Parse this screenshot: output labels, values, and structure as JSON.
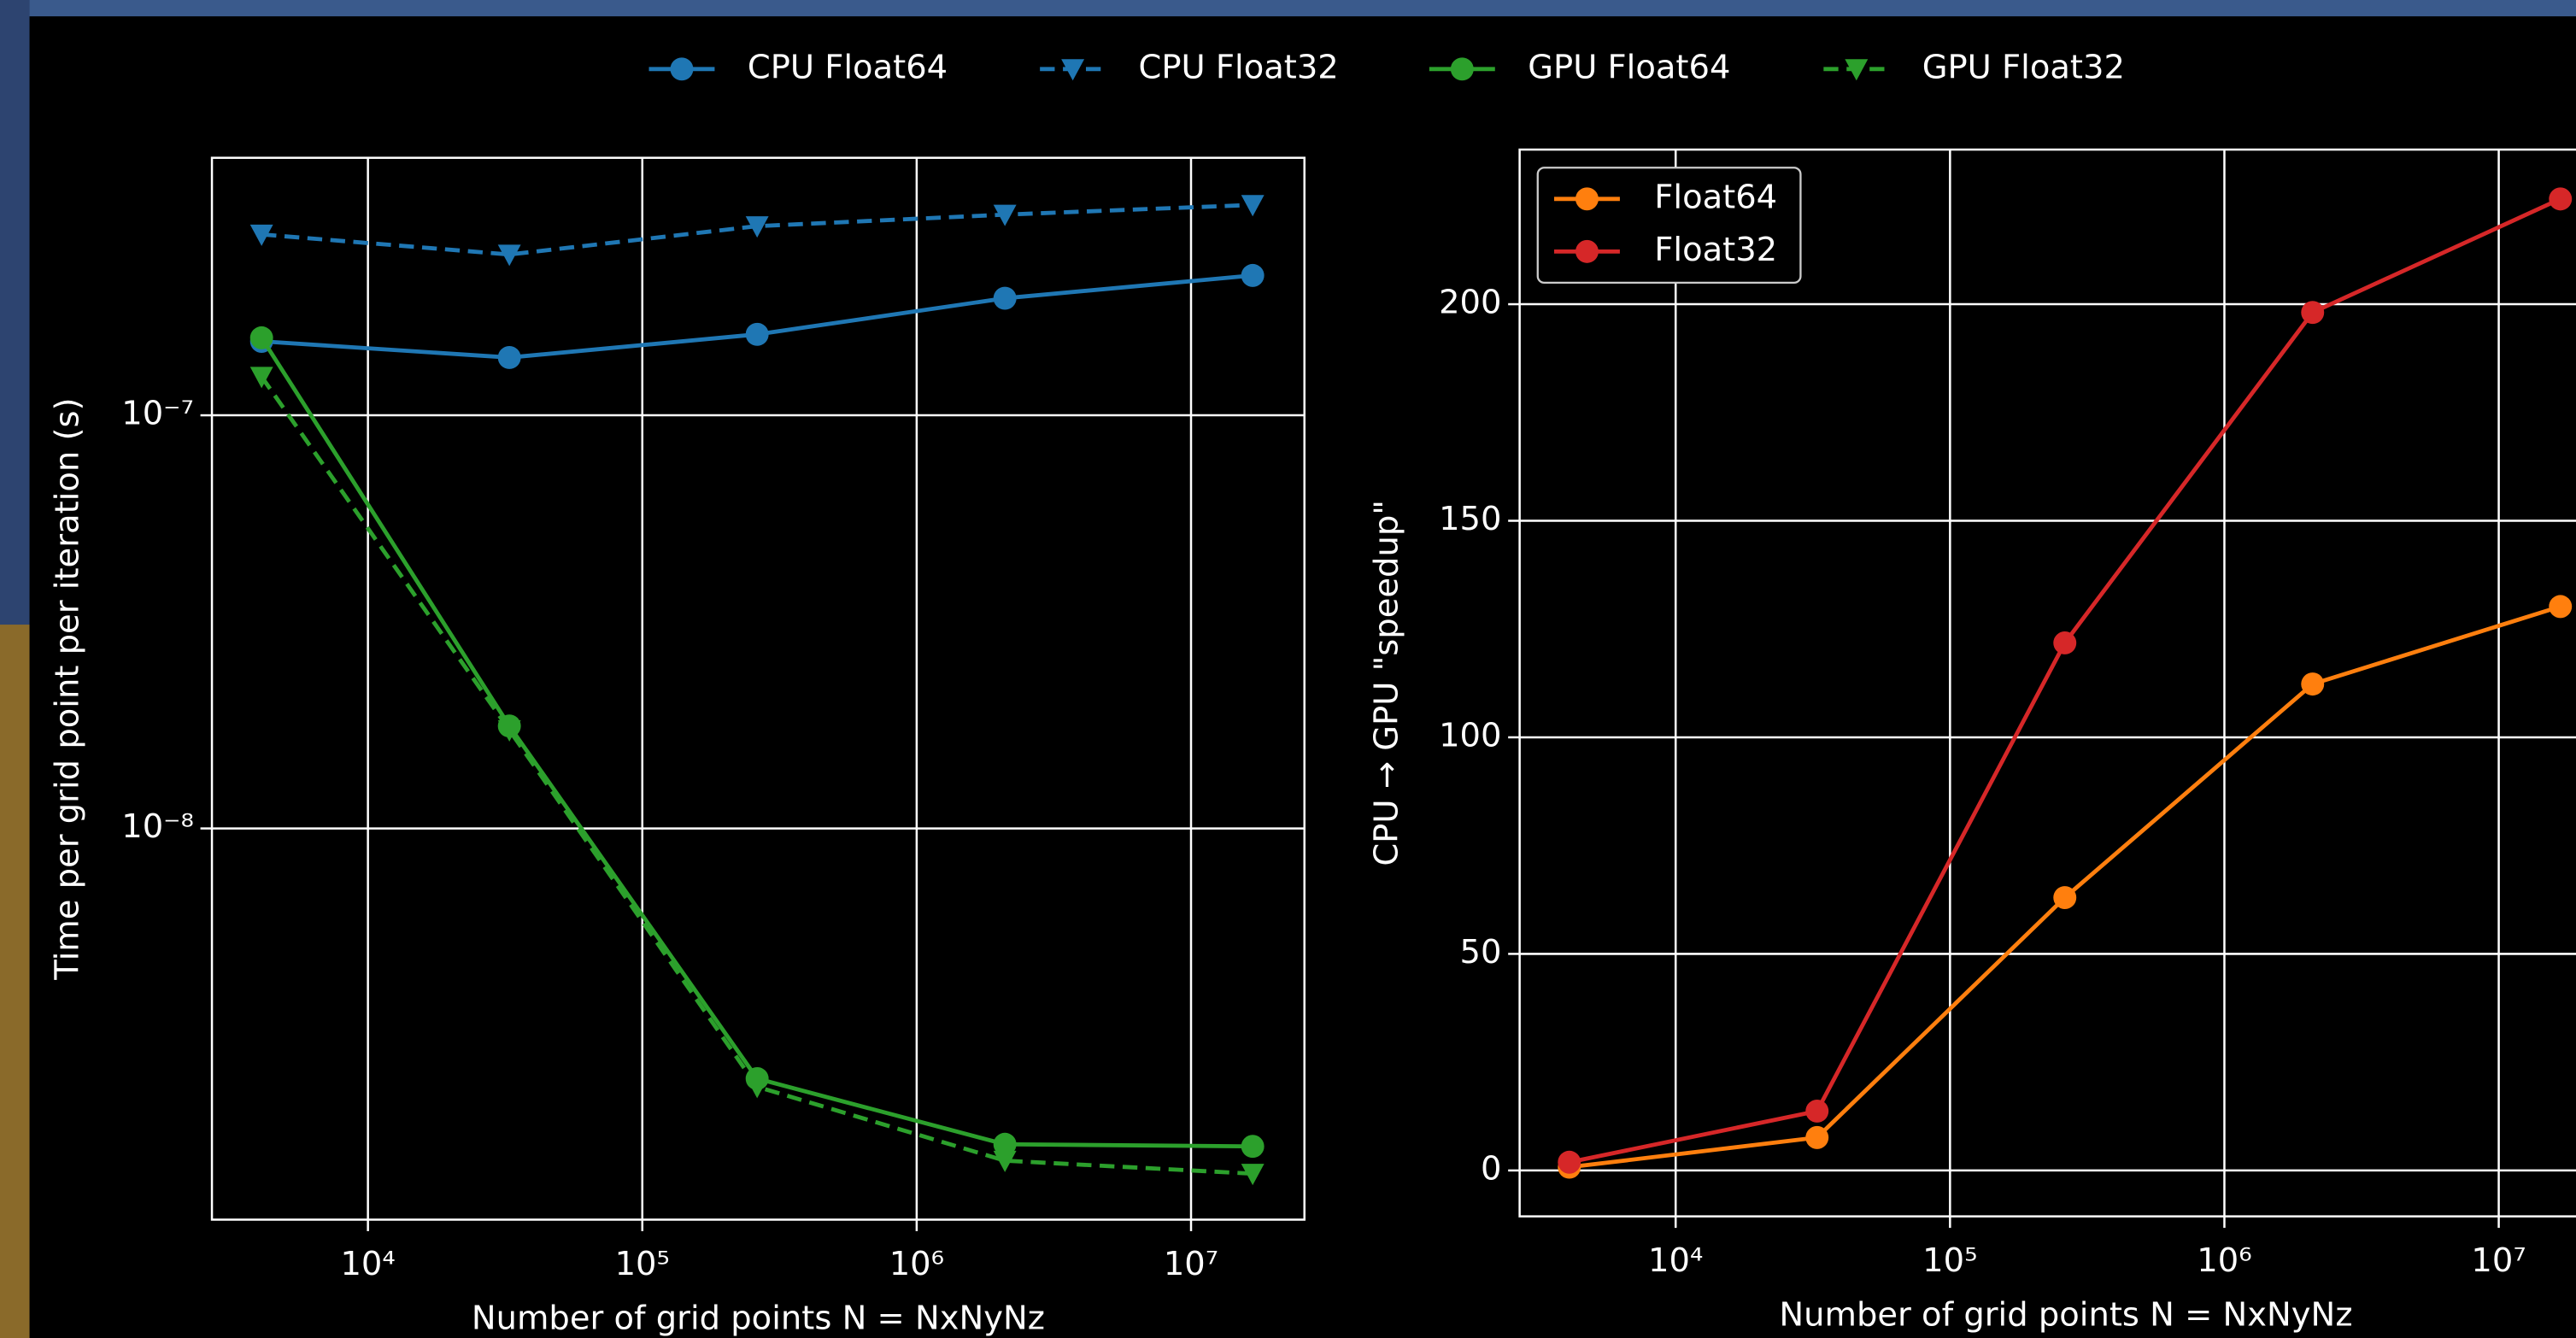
{
  "chart_data": [
    {
      "type": "line",
      "x": [
        4096,
        32768,
        262144,
        2097152,
        16777216
      ],
      "series": [
        {
          "name": "CPU Float64",
          "color": "#1f77b4",
          "marker": "circle",
          "linestyle": "solid",
          "values": [
            1.51e-07,
            1.38e-07,
            1.57e-07,
            1.92e-07,
            2.18e-07
          ]
        },
        {
          "name": "CPU Float32",
          "color": "#1f77b4",
          "marker": "triangle-down",
          "linestyle": "dashed",
          "values": [
            2.74e-07,
            2.45e-07,
            2.87e-07,
            3.06e-07,
            3.23e-07
          ]
        },
        {
          "name": "GPU Float64",
          "color": "#2ca02c",
          "marker": "circle",
          "linestyle": "solid",
          "values": [
            1.54e-07,
            1.77e-08,
            2.48e-09,
            1.72e-09,
            1.7e-09
          ]
        },
        {
          "name": "GPU Float32",
          "color": "#2ca02c",
          "marker": "triangle-down",
          "linestyle": "dashed",
          "values": [
            1.24e-07,
            1.73e-08,
            2.37e-09,
            1.57e-09,
            1.46e-09
          ]
        }
      ],
      "x_label": "Number of grid points N = NxNyNz",
      "y_label": "Time per grid point per iteration (s)",
      "xscale": "log",
      "yscale": "log",
      "xlim": [
        2700,
        25900000
      ],
      "ylim": [
        1.13e-09,
        4.2e-07
      ],
      "xticks": [
        {
          "value": 10000,
          "label": "10⁴"
        },
        {
          "value": 100000,
          "label": "10⁵"
        },
        {
          "value": 1000000,
          "label": "10⁶"
        },
        {
          "value": 10000000,
          "label": "10⁷"
        }
      ],
      "yticks": [
        {
          "value": 1e-08,
          "label": "10⁻⁸"
        },
        {
          "value": 1e-07,
          "label": "10⁻⁷"
        }
      ],
      "grid": true,
      "legend": "top"
    },
    {
      "type": "line",
      "x": [
        4096,
        32768,
        262144,
        2097152,
        16777216
      ],
      "series": [
        {
          "name": "Float64",
          "color": "#ff7f0e",
          "marker": "circle",
          "linestyle": "solid",
          "values": [
            0.76,
            7.6,
            63,
            112.3,
            130.2
          ]
        },
        {
          "name": "Float32",
          "color": "#d62728",
          "marker": "circle",
          "linestyle": "solid",
          "values": [
            1.9,
            13.7,
            121.8,
            198.1,
            224.3
          ]
        }
      ],
      "x_label": "Number of grid points N = NxNyNz",
      "y_label": "CPU → GPU \"speedup\"",
      "xscale": "log",
      "yscale": "linear",
      "xlim": [
        2700,
        25900000
      ],
      "ylim": [
        -10.6,
        235.7
      ],
      "xticks": [
        {
          "value": 10000,
          "label": "10⁴"
        },
        {
          "value": 100000,
          "label": "10⁵"
        },
        {
          "value": 1000000,
          "label": "10⁶"
        },
        {
          "value": 10000000,
          "label": "10⁷"
        }
      ],
      "yticks": [
        0,
        50,
        100,
        150,
        200
      ],
      "grid": true,
      "legend": "upper left"
    }
  ]
}
